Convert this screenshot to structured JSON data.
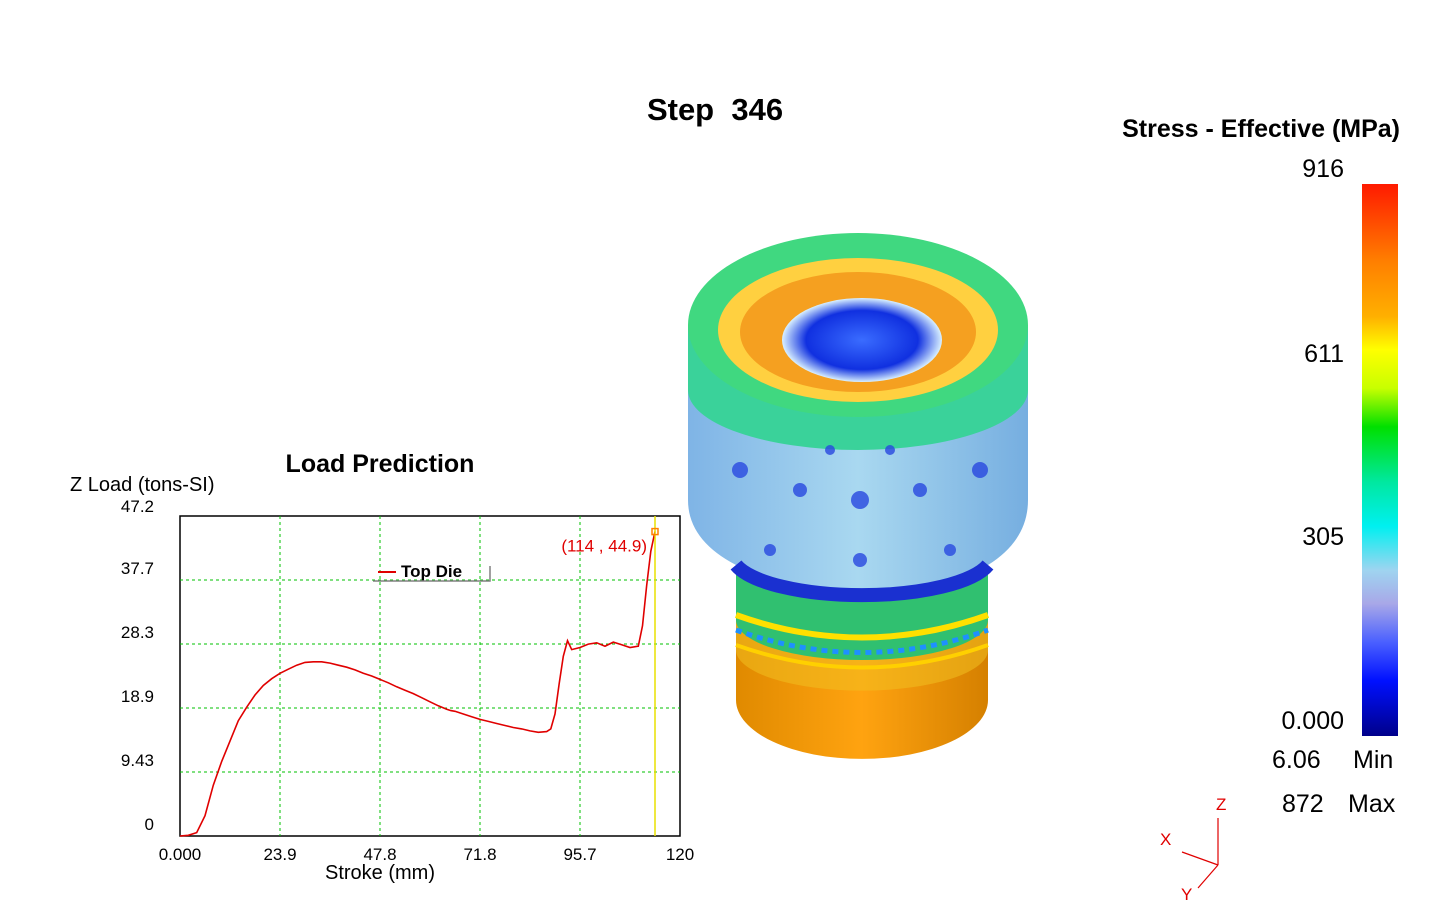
{
  "step_title": "Step  346",
  "legend": {
    "title": "Stress - Effective (MPa)",
    "ticks": [
      "916",
      "611",
      "305",
      "0.000"
    ],
    "min_value": "6.06",
    "min_label": "Min",
    "max_value": "872",
    "max_label": "Max",
    "colors": [
      "#ff1a00",
      "#ffff00",
      "#00e000",
      "#00f0f0",
      "#0010ff",
      "#00008a"
    ]
  },
  "triad": {
    "x": "X",
    "y": "Y",
    "z": "Z"
  },
  "model_icon": "cylindrical-forged-part-stress-contour",
  "chart_data": {
    "type": "line",
    "title": "Load Prediction",
    "xlabel": "Stroke (mm)",
    "ylabel": "Z Load (tons-SI)",
    "xlim": [
      0,
      120
    ],
    "ylim": [
      0,
      47.2
    ],
    "xticks": [
      "0.000",
      "23.9",
      "47.8",
      "71.8",
      "95.7",
      "120"
    ],
    "yticks": [
      "0",
      "9.43",
      "18.9",
      "28.3",
      "37.7",
      "47.2"
    ],
    "grid": true,
    "legend_position": "top-center",
    "series": [
      {
        "name": "Top Die",
        "color": "#e00000",
        "x": [
          0,
          2,
          4,
          6,
          8,
          10,
          12,
          14,
          16,
          18,
          20,
          22,
          24,
          26,
          28,
          30,
          32,
          34,
          36,
          38,
          40,
          42,
          44,
          46,
          48,
          50,
          52,
          54,
          56,
          58,
          60,
          62,
          64,
          65,
          66,
          68,
          70,
          72,
          74,
          76,
          78,
          80,
          82,
          84,
          86,
          88,
          89,
          90,
          91,
          92,
          93,
          94,
          96,
          98,
          100,
          102,
          104,
          106,
          108,
          110,
          111,
          112,
          113,
          114
        ],
        "y": [
          0,
          0.1,
          0.5,
          3,
          7.5,
          11,
          14,
          17,
          19,
          20.8,
          22.2,
          23.2,
          24,
          24.6,
          25.2,
          25.6,
          25.7,
          25.7,
          25.5,
          25.2,
          24.9,
          24.5,
          24,
          23.6,
          23.1,
          22.6,
          22,
          21.5,
          21,
          20.4,
          19.8,
          19.2,
          18.7,
          18.5,
          18.4,
          18,
          17.6,
          17.2,
          16.9,
          16.6,
          16.3,
          16,
          15.8,
          15.5,
          15.3,
          15.4,
          15.8,
          18,
          22.5,
          26.5,
          28.8,
          27.5,
          27.8,
          28.3,
          28.5,
          28,
          28.6,
          28.2,
          27.8,
          28,
          31,
          37,
          42,
          44.9
        ]
      }
    ],
    "annotations": [
      {
        "text": "(114 , 44.9)",
        "x": 114,
        "y": 44.9
      }
    ],
    "cursor_x": 114
  }
}
